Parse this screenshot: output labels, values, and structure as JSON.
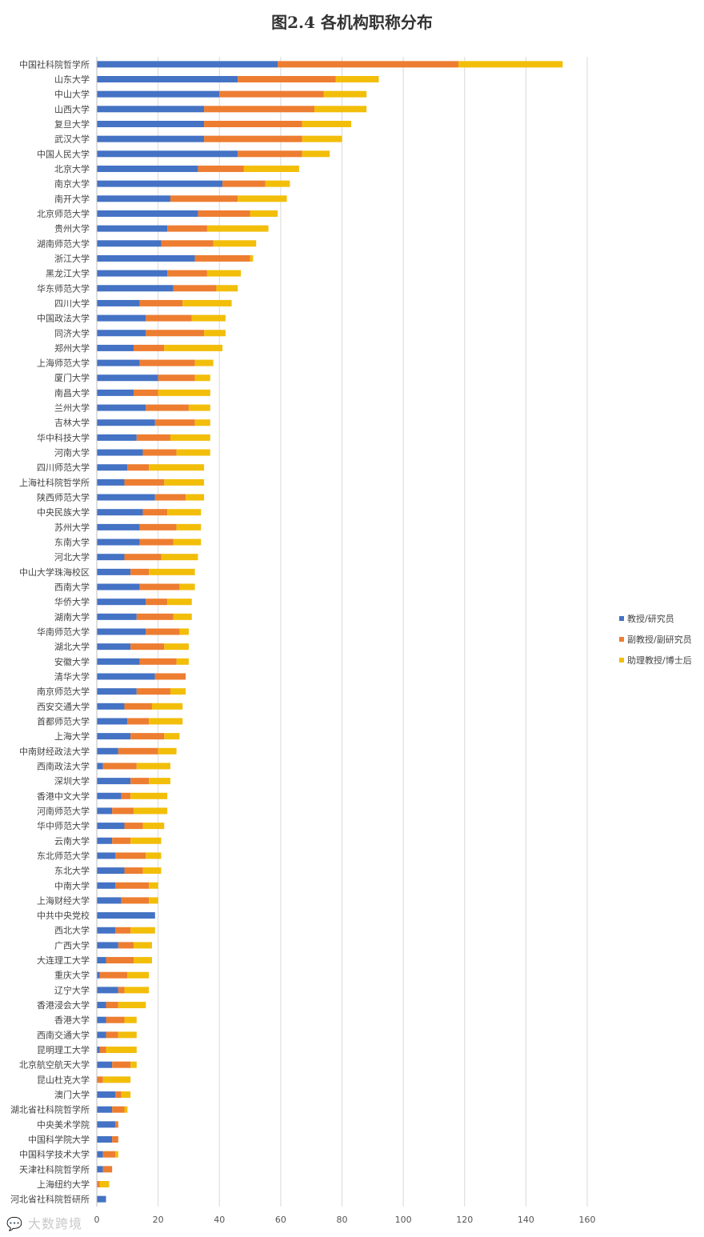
{
  "chart_data": {
    "type": "bar",
    "orientation": "horizontal",
    "stacked": true,
    "title": "图2.4 各机构职称分布",
    "xlabel": "",
    "ylabel": "",
    "xlim": [
      0,
      160
    ],
    "xticks": [
      0,
      20,
      40,
      60,
      80,
      100,
      120,
      140,
      160
    ],
    "grid": "vertical",
    "legend_position": "right",
    "categories": [
      "中国社科院哲学所",
      "山东大学",
      "中山大学",
      "山西大学",
      "复旦大学",
      "武汉大学",
      "中国人民大学",
      "北京大学",
      "南京大学",
      "南开大学",
      "北京师范大学",
      "贵州大学",
      "湖南师范大学",
      "浙江大学",
      "黑龙江大学",
      "华东师范大学",
      "四川大学",
      "中国政法大学",
      "同济大学",
      "郑州大学",
      "上海师范大学",
      "厦门大学",
      "南昌大学",
      "兰州大学",
      "吉林大学",
      "华中科技大学",
      "河南大学",
      "四川师范大学",
      "上海社科院哲学所",
      "陕西师范大学",
      "中央民族大学",
      "苏州大学",
      "东南大学",
      "河北大学",
      "中山大学珠海校区",
      "西南大学",
      "华侨大学",
      "湖南大学",
      "华南师范大学",
      "湖北大学",
      "安徽大学",
      "清华大学",
      "南京师范大学",
      "西安交通大学",
      "首都师范大学",
      "上海大学",
      "中南财经政法大学",
      "西南政法大学",
      "深圳大学",
      "香港中文大学",
      "河南师范大学",
      "华中师范大学",
      "云南大学",
      "东北师范大学",
      "东北大学",
      "中南大学",
      "上海财经大学",
      "中共中央党校",
      "西北大学",
      "广西大学",
      "大连理工大学",
      "重庆大学",
      "辽宁大学",
      "香港浸会大学",
      "香港大学",
      "西南交通大学",
      "昆明理工大学",
      "北京航空航天大学",
      "昆山杜克大学",
      "澳门大学",
      "湖北省社科院哲学所",
      "中央美术学院",
      "中国科学院大学",
      "中国科学技术大学",
      "天津社科院哲学所",
      "上海纽约大学",
      "河北省社科院哲研所"
    ],
    "series": [
      {
        "name": "教授/研究员",
        "color": "#4472C4",
        "values": [
          59,
          46,
          40,
          35,
          35,
          35,
          46,
          33,
          41,
          24,
          33,
          23,
          21,
          32,
          23,
          25,
          14,
          16,
          16,
          12,
          14,
          20,
          12,
          16,
          19,
          13,
          15,
          10,
          9,
          19,
          15,
          14,
          14,
          9,
          11,
          14,
          16,
          13,
          16,
          11,
          14,
          19,
          13,
          9,
          10,
          11,
          7,
          2,
          11,
          8,
          5,
          9,
          5,
          6,
          9,
          6,
          8,
          19,
          6,
          7,
          3,
          1,
          7,
          3,
          3,
          3,
          1,
          5,
          0,
          6,
          5,
          6,
          5,
          2,
          2,
          0,
          3
        ]
      },
      {
        "name": "副教授/副研究员",
        "color": "#ED7D31",
        "values": [
          59,
          32,
          34,
          36,
          32,
          32,
          21,
          15,
          14,
          22,
          17,
          13,
          17,
          18,
          13,
          14,
          14,
          15,
          19,
          10,
          18,
          12,
          8,
          14,
          13,
          11,
          11,
          7,
          13,
          10,
          8,
          12,
          11,
          12,
          6,
          13,
          7,
          12,
          11,
          11,
          12,
          10,
          11,
          9,
          7,
          11,
          13,
          11,
          6,
          3,
          7,
          6,
          6,
          10,
          6,
          11,
          9,
          0,
          5,
          5,
          9,
          9,
          2,
          4,
          6,
          4,
          2,
          6,
          2,
          2,
          4,
          1,
          2,
          4,
          3,
          1,
          0
        ]
      },
      {
        "name": "助理教授/博士后",
        "color": "#F2BE0A",
        "values": [
          34,
          14,
          14,
          17,
          16,
          13,
          9,
          18,
          8,
          16,
          9,
          20,
          14,
          1,
          11,
          7,
          16,
          11,
          7,
          19,
          6,
          5,
          17,
          7,
          5,
          13,
          11,
          18,
          13,
          6,
          11,
          8,
          9,
          12,
          15,
          5,
          8,
          6,
          3,
          8,
          4,
          0,
          5,
          10,
          11,
          5,
          6,
          11,
          7,
          12,
          11,
          7,
          10,
          5,
          6,
          3,
          3,
          0,
          8,
          6,
          6,
          7,
          8,
          9,
          4,
          6,
          10,
          2,
          9,
          3,
          1,
          0,
          0,
          1,
          0,
          3,
          0
        ]
      }
    ]
  }
}
